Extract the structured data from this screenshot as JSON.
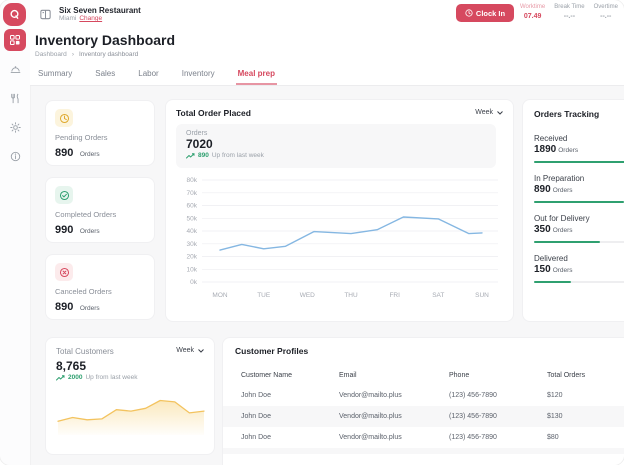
{
  "sidebar": {
    "items": [
      {
        "icon": "grid-dashboard-icon",
        "active": true
      },
      {
        "icon": "cloche-icon",
        "active": false
      },
      {
        "icon": "utensils-icon",
        "active": false
      },
      {
        "icon": "gear-icon",
        "active": false
      },
      {
        "icon": "info-icon",
        "active": false
      }
    ]
  },
  "topbar": {
    "restaurant_name": "Six Seven Restaurant",
    "location": "Miami",
    "change_label": "Change",
    "clock_in_label": "Clock In",
    "time_stats": [
      {
        "label": "Worktime",
        "value": "07.49"
      },
      {
        "label": "Break Time",
        "value": "--.--"
      },
      {
        "label": "Overtime",
        "value": "--.--"
      }
    ]
  },
  "page": {
    "title": "Inventory Dashboard",
    "breadcrumb": {
      "parent": "Dashboard",
      "separator": "›",
      "current": "Inventory dashboard"
    },
    "tabs": [
      {
        "label": "Summary",
        "active": false
      },
      {
        "label": "Sales",
        "active": false
      },
      {
        "label": "Labor",
        "active": false
      },
      {
        "label": "Inventory",
        "active": false
      },
      {
        "label": "Meal prep",
        "active": true
      }
    ]
  },
  "stat_cards": [
    {
      "label": "Pending Orders",
      "value": "890",
      "unit": "Orders",
      "icon": "clock-pending-icon",
      "color": "#dfa92e",
      "bg": "#fcf4dd"
    },
    {
      "label": "Completed Orders",
      "value": "990",
      "unit": "Orders",
      "icon": "check-circle-icon",
      "color": "#2fa070",
      "bg": "#e7f5ee"
    },
    {
      "label": "Canceled Orders",
      "value": "890",
      "unit": "Orders",
      "icon": "x-circle-icon",
      "color": "#d6495f",
      "bg": "#fcebec"
    }
  ],
  "order_chart": {
    "title": "Total Order Placed",
    "period": "Week",
    "summary": {
      "label": "Orders",
      "value": "7020",
      "delta": "890",
      "delta_suffix": "Up from last week"
    }
  },
  "orders_tracking": {
    "title": "Orders Tracking",
    "items": [
      {
        "label": "Received",
        "value": "1890",
        "unit": "Orders",
        "progress": 100
      },
      {
        "label": "In Preparation",
        "value": "890",
        "unit": "Orders",
        "progress": 85
      },
      {
        "label": "Out for Delivery",
        "value": "350",
        "unit": "Orders",
        "progress": 62
      },
      {
        "label": "Delivered",
        "value": "150",
        "unit": "Orders",
        "progress": 35
      }
    ]
  },
  "customers_card": {
    "title": "Total Customers",
    "period": "Week",
    "value": "8,765",
    "delta": "2000",
    "delta_suffix": "Up from last week"
  },
  "customer_profiles": {
    "title": "Customer Profiles",
    "columns": [
      "Customer Name",
      "Email",
      "Phone",
      "Total Orders"
    ],
    "rows": [
      [
        "John Doe",
        "Vendor@mailto.plus",
        "(123) 456-7890",
        "$120"
      ],
      [
        "John Doe",
        "Vendor@mailto.plus",
        "(123) 456-7890",
        "$130"
      ],
      [
        "John Doe",
        "Vendor@mailto.plus",
        "(123) 456-7890",
        "$80"
      ]
    ]
  },
  "colors": {
    "primary": "#d6495f",
    "green": "#2fa070",
    "line_blue": "#85b7e2",
    "area_yellow": "#f3c35f",
    "bg": "#f7f7f8"
  },
  "chart_data": [
    {
      "type": "line",
      "title": "Total Order Placed",
      "x_labels": [
        "MON",
        "TUE",
        "WED",
        "THU",
        "FRI",
        "SAT",
        "SUN"
      ],
      "x": [
        0,
        0.5,
        1,
        1.5,
        2.15,
        3,
        3.6,
        4.2,
        5,
        5.7,
        6
      ],
      "values": [
        25000,
        29500,
        26000,
        28000,
        39500,
        38000,
        41000,
        51000,
        49500,
        38000,
        38500
      ],
      "ylim": [
        0,
        80000
      ],
      "ytick_step": 10000,
      "ytick_format": "k",
      "grid": true,
      "legend": "none",
      "line_color": "#85b7e2"
    },
    {
      "type": "area",
      "title": "Total Customers",
      "x": [
        0,
        1,
        2,
        3,
        4,
        5,
        6,
        7,
        8,
        9,
        10
      ],
      "values": [
        30,
        38,
        33,
        35,
        55,
        52,
        58,
        75,
        72,
        48,
        52
      ],
      "ylim": [
        0,
        100
      ],
      "grid": false,
      "legend": "none",
      "line_color": "#f3c35f",
      "fill_color": "#f6cd6e"
    }
  ]
}
